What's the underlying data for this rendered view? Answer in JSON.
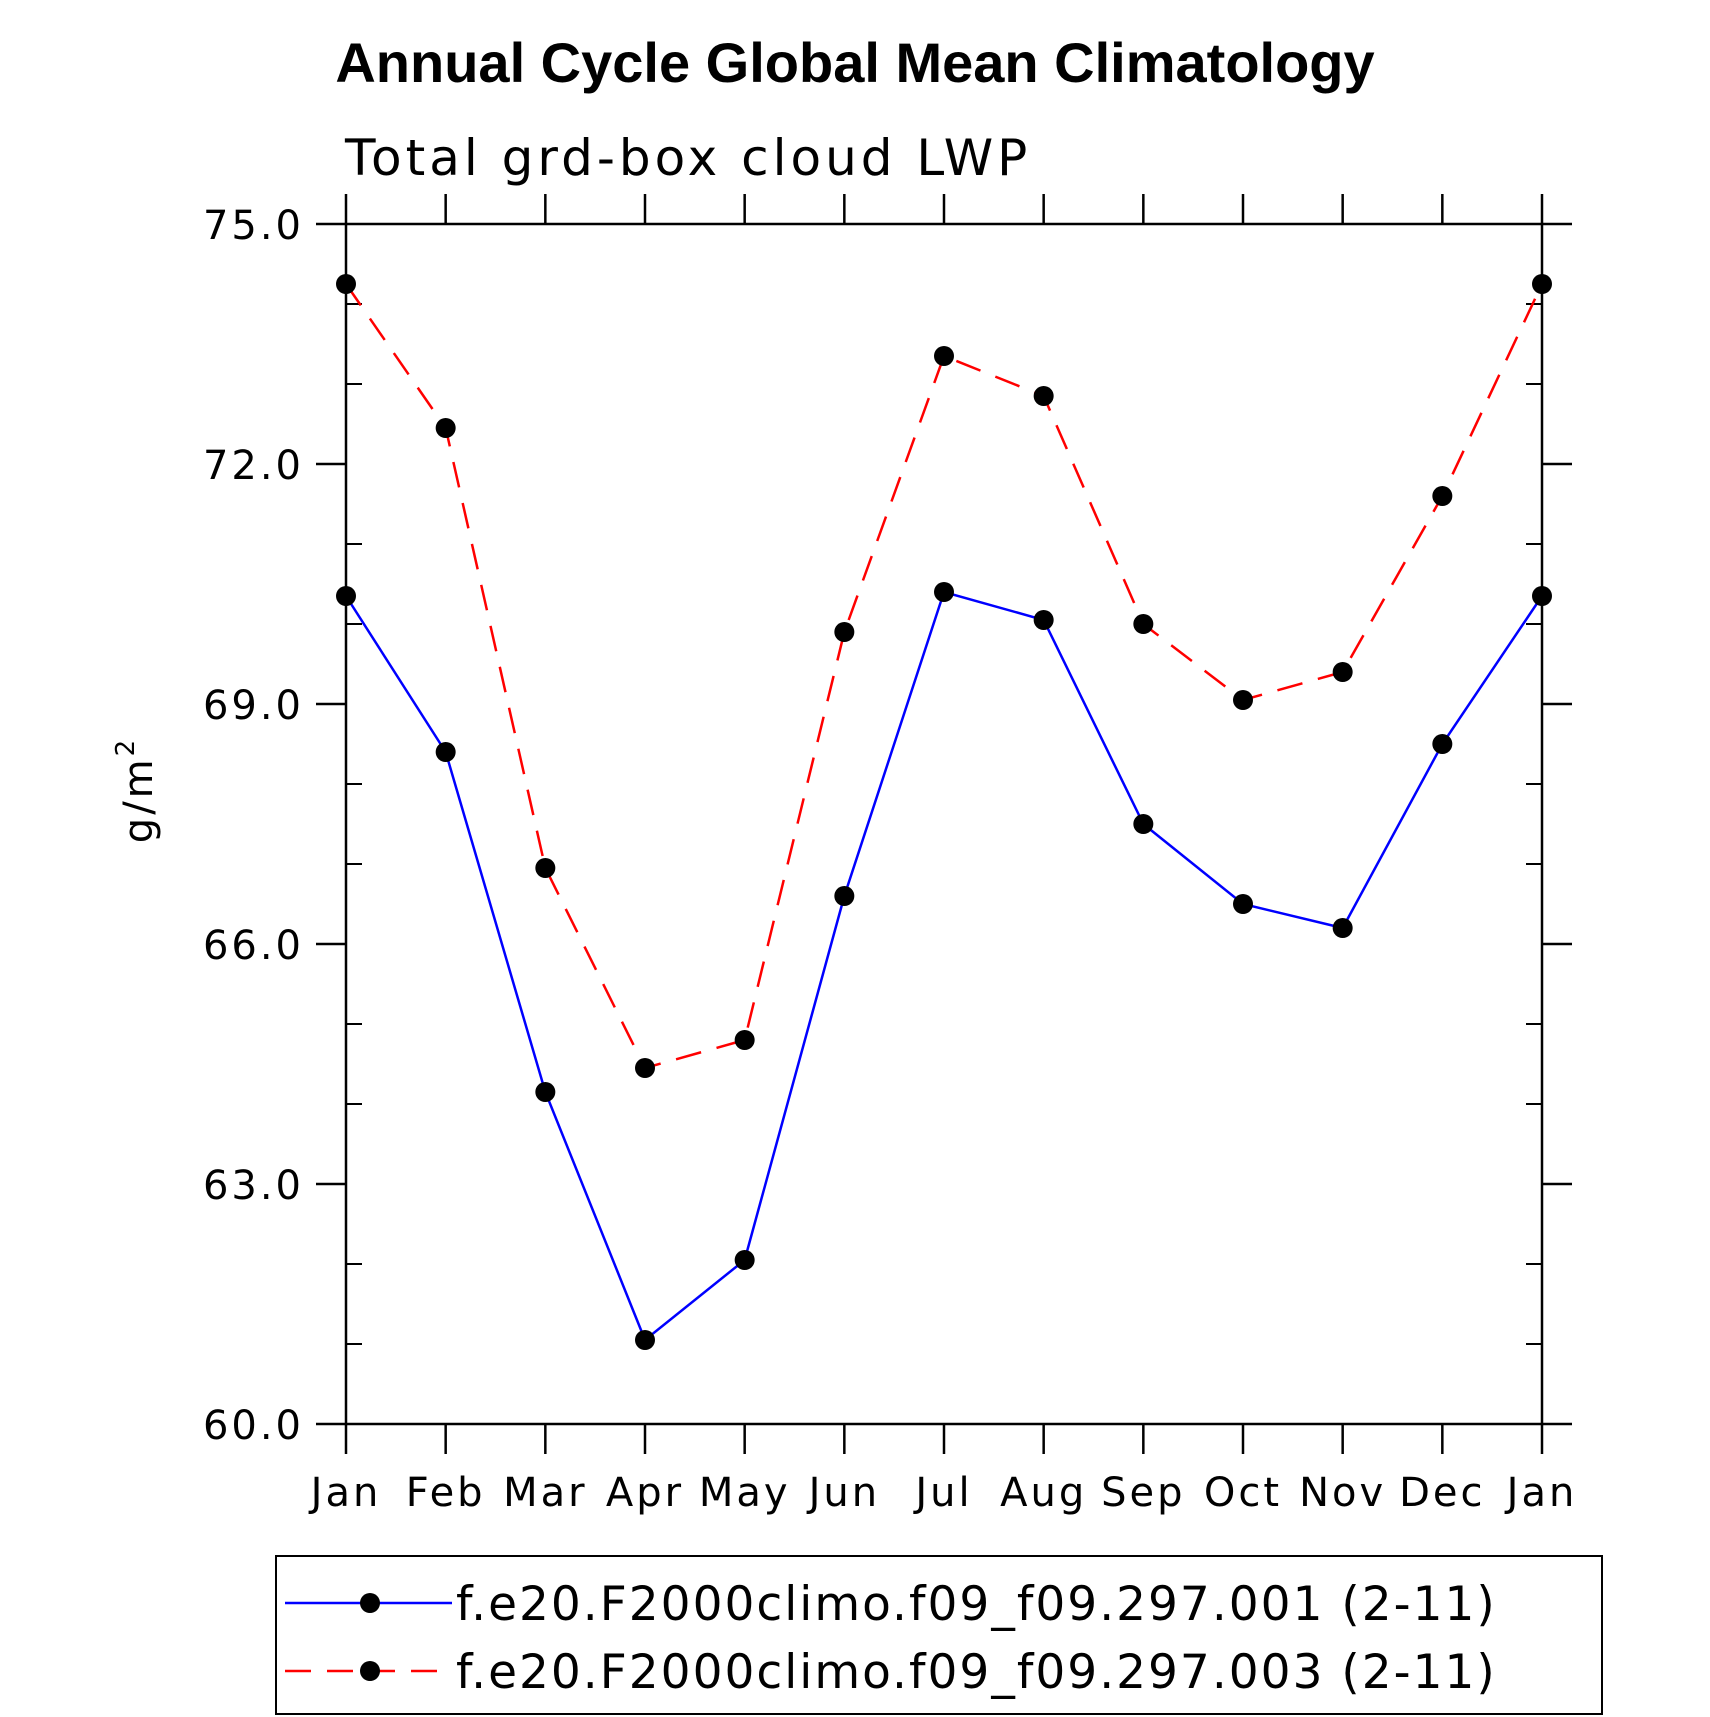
{
  "chart_data": {
    "type": "line",
    "title": "Annual Cycle Global Mean Climatology",
    "subtitle": "Total grd-box cloud LWP",
    "ylabel": "g/m",
    "ylabel_superscript": "2",
    "xlabel": "",
    "categories": [
      "Jan",
      "Feb",
      "Mar",
      "Apr",
      "May",
      "Jun",
      "Jul",
      "Aug",
      "Sep",
      "Oct",
      "Nov",
      "Dec",
      "Jan"
    ],
    "ylim": [
      60.0,
      75.0
    ],
    "yticks": [
      60.0,
      63.0,
      66.0,
      69.0,
      72.0,
      75.0
    ],
    "ytick_labels": [
      "60.0",
      "63.0",
      "66.0",
      "69.0",
      "72.0",
      "75.0"
    ],
    "y_minor_step": 1.0,
    "grid": false,
    "legend_position": "bottom",
    "series": [
      {
        "name": "f.e20.F2000climo.f09_f09.297.001 (2-11)",
        "color": "#0000ff",
        "line_style": "solid",
        "marker": "filled-circle",
        "values": [
          70.35,
          68.4,
          64.15,
          61.05,
          62.05,
          66.6,
          70.4,
          70.05,
          67.5,
          66.5,
          66.2,
          68.5,
          70.35
        ]
      },
      {
        "name": "f.e20.F2000climo.f09_f09.297.003 (2-11)",
        "color": "#ff0000",
        "line_style": "dashed",
        "marker": "filled-circle",
        "values": [
          74.25,
          72.45,
          66.95,
          64.45,
          64.8,
          69.9,
          73.35,
          72.85,
          70.0,
          69.05,
          69.4,
          71.6,
          74.25
        ]
      }
    ]
  }
}
